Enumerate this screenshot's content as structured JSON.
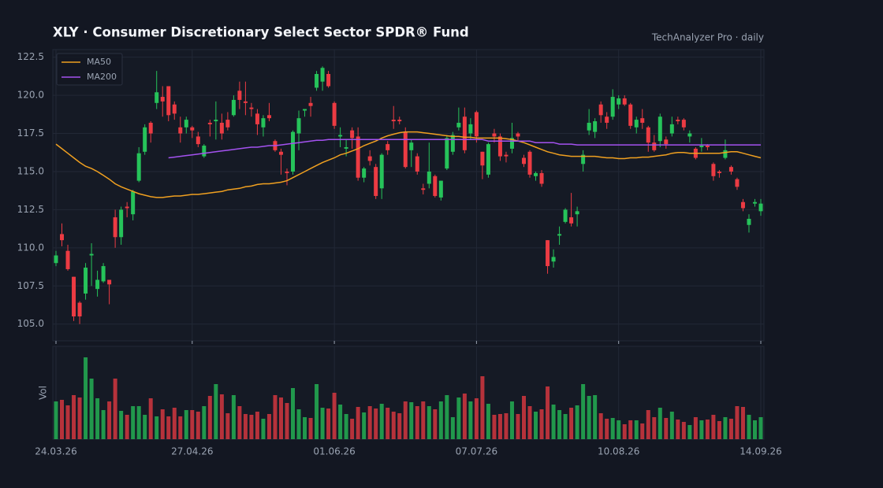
{
  "chart_data": {
    "type": "candlestick",
    "title": "XLY  ·  Consumer Discretionary Select Sector SPDR® Fund",
    "subtitle": "TechAnalyzer Pro · daily",
    "categories": [
      "24.03.26",
      null,
      null,
      null,
      null,
      null,
      null,
      null,
      null,
      null,
      null,
      null,
      null,
      null,
      null,
      null,
      null,
      null,
      null,
      null,
      null,
      null,
      null,
      "27.04.26",
      null,
      null,
      null,
      null,
      null,
      null,
      null,
      null,
      null,
      null,
      null,
      null,
      null,
      null,
      null,
      null,
      null,
      null,
      null,
      null,
      null,
      null,
      null,
      "01.06.26",
      null,
      null,
      null,
      null,
      null,
      null,
      null,
      null,
      null,
      null,
      null,
      null,
      null,
      null,
      null,
      null,
      null,
      null,
      null,
      null,
      null,
      null,
      null,
      "07.07.26",
      null,
      null,
      null,
      null,
      null,
      null,
      null,
      null,
      null,
      null,
      null,
      null,
      null,
      null,
      null,
      null,
      null,
      null,
      null,
      null,
      null,
      null,
      null,
      "10.08.26",
      null,
      null,
      null,
      null,
      null,
      null,
      null,
      null,
      null,
      null,
      null,
      null,
      null,
      null,
      null,
      null,
      null,
      null,
      null,
      null,
      null,
      null,
      null,
      "14.09.26"
    ],
    "open": [
      109.0,
      110.9,
      109.8,
      108.1,
      106.4,
      107.0,
      109.5,
      107.3,
      107.8,
      107.9,
      112.0,
      110.7,
      112.7,
      112.2,
      114.4,
      116.3,
      118.2,
      119.5,
      119.9,
      120.6,
      119.4,
      117.9,
      117.9,
      117.9,
      117.3,
      116.0,
      118.2,
      118.3,
      118.2,
      118.4,
      118.7,
      120.3,
      119.6,
      119.2,
      118.8,
      117.9,
      118.7,
      117.0,
      116.3,
      115.0,
      115.0,
      117.5,
      119.0,
      119.5,
      120.5,
      120.9,
      121.4,
      119.5,
      117.3,
      116.5,
      117.7,
      117.3,
      114.6,
      116.0,
      115.3,
      113.9,
      116.8,
      118.4,
      118.4,
      117.6,
      116.4,
      116.0,
      113.9,
      114.2,
      114.7,
      113.3,
      115.2,
      116.3,
      117.9,
      118.6,
      117.5,
      118.9,
      116.3,
      114.8,
      117.5,
      117.3,
      116.1,
      116.5,
      117.5,
      115.9,
      116.3,
      114.7,
      114.9,
      110.5,
      109.1,
      110.8,
      111.7,
      112.0,
      112.2,
      115.5,
      117.7,
      117.6,
      119.4,
      118.6,
      118.6,
      119.4,
      119.8,
      119.4,
      117.9,
      118.5,
      117.9,
      116.9,
      117.0,
      117.1,
      117.5,
      118.4,
      118.4,
      117.3,
      116.5,
      116.6,
      116.7,
      115.5,
      115.0,
      115.9,
      115.3,
      114.5,
      113.0,
      111.5,
      112.9,
      112.4
    ],
    "high": [
      109.8,
      111.6,
      110.2,
      108.1,
      106.5,
      109.0,
      110.3,
      108.5,
      109.0,
      107.9,
      112.5,
      112.7,
      113.0,
      113.8,
      116.6,
      118.1,
      118.3,
      121.6,
      120.6,
      120.6,
      119.6,
      118.6,
      118.6,
      118.0,
      117.6,
      116.8,
      118.4,
      119.6,
      118.8,
      118.9,
      120.0,
      120.9,
      120.9,
      119.5,
      119.1,
      118.7,
      119.5,
      117.1,
      116.5,
      115.2,
      117.7,
      119.0,
      119.1,
      119.9,
      121.6,
      121.9,
      121.6,
      119.6,
      117.9,
      117.1,
      117.9,
      117.9,
      115.3,
      116.4,
      115.5,
      116.2,
      117.0,
      119.3,
      118.6,
      117.9,
      117.1,
      116.2,
      114.2,
      116.9,
      114.8,
      114.4,
      117.4,
      117.6,
      119.2,
      119.2,
      118.5,
      119.0,
      116.3,
      116.9,
      117.8,
      117.5,
      116.3,
      118.2,
      117.6,
      116.1,
      116.4,
      115.0,
      115.1,
      110.5,
      109.9,
      111.4,
      112.6,
      113.6,
      112.7,
      116.4,
      119.1,
      118.5,
      119.6,
      118.9,
      120.4,
      120.0,
      120.0,
      119.5,
      118.6,
      119.1,
      118.0,
      117.4,
      118.8,
      117.3,
      118.6,
      118.6,
      118.5,
      117.7,
      116.6,
      117.2,
      116.8,
      115.6,
      115.1,
      117.1,
      115.4,
      114.6,
      113.2,
      112.2,
      113.2,
      113.2
    ],
    "low": [
      108.8,
      110.1,
      108.5,
      105.2,
      105.0,
      106.6,
      107.5,
      106.8,
      107.7,
      106.3,
      110.0,
      110.2,
      112.0,
      111.8,
      114.3,
      116.1,
      116.9,
      119.1,
      118.6,
      118.3,
      118.4,
      116.9,
      117.5,
      117.2,
      116.6,
      115.9,
      117.3,
      117.1,
      117.1,
      117.7,
      118.6,
      119.1,
      118.7,
      118.6,
      117.4,
      117.3,
      118.3,
      116.3,
      114.8,
      114.1,
      114.8,
      116.4,
      118.6,
      118.6,
      120.3,
      120.3,
      120.5,
      117.8,
      116.6,
      116.0,
      116.5,
      114.4,
      114.3,
      115.4,
      113.2,
      113.2,
      116.1,
      117.8,
      118.1,
      115.2,
      115.3,
      114.8,
      113.5,
      113.9,
      113.3,
      113.1,
      115.1,
      116.1,
      117.7,
      116.2,
      117.1,
      116.9,
      114.5,
      114.6,
      116.9,
      115.7,
      115.6,
      116.2,
      117.0,
      115.3,
      114.6,
      114.4,
      114.0,
      108.3,
      108.7,
      110.2,
      111.6,
      111.4,
      111.4,
      115.0,
      117.4,
      117.2,
      118.2,
      117.8,
      118.4,
      119.1,
      119.3,
      117.8,
      117.5,
      117.8,
      116.3,
      116.3,
      116.6,
      116.5,
      117.3,
      118.1,
      117.7,
      116.9,
      115.8,
      116.3,
      116.4,
      114.4,
      114.6,
      115.8,
      114.8,
      113.8,
      112.4,
      111.0,
      112.7,
      112.1
    ],
    "close": [
      109.5,
      110.5,
      108.6,
      105.5,
      105.5,
      108.7,
      109.6,
      107.9,
      108.8,
      107.6,
      110.7,
      112.5,
      112.6,
      113.7,
      116.2,
      117.9,
      117.5,
      120.2,
      119.6,
      118.7,
      118.8,
      117.5,
      118.4,
      117.7,
      116.8,
      116.7,
      118.1,
      118.4,
      117.5,
      117.9,
      119.7,
      119.7,
      119.5,
      119.1,
      118.1,
      118.5,
      118.5,
      116.4,
      116.1,
      114.9,
      117.6,
      118.5,
      119.1,
      119.3,
      121.4,
      121.8,
      120.6,
      118.0,
      117.4,
      116.6,
      117.2,
      114.6,
      115.2,
      115.7,
      113.4,
      116.1,
      116.4,
      118.3,
      118.3,
      115.3,
      116.9,
      115.0,
      113.8,
      115.0,
      113.4,
      114.4,
      117.2,
      117.4,
      118.2,
      116.4,
      118.1,
      117.3,
      115.4,
      116.8,
      117.3,
      116.0,
      116.0,
      117.2,
      117.3,
      115.5,
      114.8,
      114.9,
      114.2,
      108.8,
      109.4,
      110.9,
      112.5,
      111.6,
      112.4,
      116.1,
      118.2,
      118.3,
      118.7,
      118.2,
      119.9,
      119.8,
      119.4,
      118.0,
      118.4,
      118.2,
      116.9,
      116.4,
      118.6,
      116.8,
      118.1,
      118.3,
      117.9,
      117.5,
      115.9,
      116.7,
      116.6,
      114.7,
      114.9,
      116.4,
      115.0,
      114.0,
      112.6,
      111.9,
      113.0,
      112.9
    ],
    "up_color": "#26c35a",
    "down_color": "#ec3b43",
    "series": [
      {
        "name": "MA50",
        "color": "#f0a020",
        "values": [
          116.8,
          116.5,
          116.2,
          115.9,
          115.6,
          115.35,
          115.2,
          115.0,
          114.75,
          114.5,
          114.2,
          114.0,
          113.85,
          113.7,
          113.55,
          113.45,
          113.35,
          113.3,
          113.3,
          113.35,
          113.4,
          113.4,
          113.45,
          113.5,
          113.5,
          113.55,
          113.6,
          113.65,
          113.7,
          113.8,
          113.85,
          113.9,
          114.0,
          114.05,
          114.15,
          114.2,
          114.2,
          114.25,
          114.3,
          114.4,
          114.6,
          114.8,
          115.0,
          115.2,
          115.4,
          115.6,
          115.75,
          115.9,
          116.1,
          116.2,
          116.35,
          116.5,
          116.7,
          116.85,
          117.0,
          117.2,
          117.35,
          117.45,
          117.55,
          117.6,
          117.6,
          117.6,
          117.55,
          117.5,
          117.45,
          117.4,
          117.35,
          117.3,
          117.3,
          117.25,
          117.25,
          117.2,
          117.2,
          117.2,
          117.2,
          117.2,
          117.15,
          117.1,
          117.0,
          116.9,
          116.75,
          116.6,
          116.45,
          116.3,
          116.2,
          116.1,
          116.05,
          116.0,
          116.0,
          116.0,
          116.0,
          116.0,
          115.95,
          115.9,
          115.9,
          115.85,
          115.85,
          115.9,
          115.9,
          115.95,
          115.95,
          116.0,
          116.05,
          116.1,
          116.2,
          116.25,
          116.25,
          116.2,
          116.2,
          116.2,
          116.2,
          116.2,
          116.2,
          116.25,
          116.3,
          116.3,
          116.2,
          116.1,
          116.0,
          115.9
        ]
      },
      {
        "name": "MA200",
        "color": "#a452f0",
        "values": [
          null,
          null,
          null,
          null,
          null,
          null,
          null,
          null,
          null,
          null,
          null,
          null,
          null,
          null,
          null,
          null,
          null,
          null,
          null,
          115.9,
          115.95,
          116.0,
          116.05,
          116.1,
          116.15,
          116.2,
          116.25,
          116.3,
          116.35,
          116.4,
          116.45,
          116.5,
          116.55,
          116.6,
          116.6,
          116.65,
          116.7,
          116.7,
          116.75,
          116.8,
          116.85,
          116.9,
          116.95,
          117.0,
          117.05,
          117.05,
          117.1,
          117.1,
          117.1,
          117.1,
          117.1,
          117.1,
          117.1,
          117.1,
          117.1,
          117.1,
          117.1,
          117.1,
          117.1,
          117.1,
          117.1,
          117.1,
          117.1,
          117.1,
          117.1,
          117.1,
          117.1,
          117.1,
          117.1,
          117.1,
          117.1,
          117.1,
          117.1,
          117.0,
          117.0,
          117.0,
          117.0,
          117.0,
          117.0,
          117.0,
          117.0,
          116.9,
          116.9,
          116.9,
          116.9,
          116.8,
          116.8,
          116.8,
          116.75,
          116.75,
          116.75,
          116.75,
          116.75,
          116.75,
          116.75,
          116.75,
          116.75,
          116.75,
          116.75,
          116.75,
          116.75,
          116.75,
          116.75,
          116.75,
          116.75,
          116.75,
          116.75,
          116.75,
          116.75,
          116.75,
          116.75,
          116.75,
          116.75,
          116.75,
          116.75,
          116.75,
          116.75,
          116.75,
          116.75,
          116.75
        ]
      }
    ],
    "volume": {
      "label": "Vol",
      "ylim": [
        0,
        118
      ],
      "values": [
        48,
        50,
        43,
        56,
        53,
        104,
        77,
        52,
        37,
        48,
        77,
        36,
        31,
        42,
        42,
        31,
        52,
        29,
        38,
        29,
        40,
        29,
        37,
        37,
        35,
        42,
        55,
        70,
        57,
        33,
        56,
        42,
        32,
        31,
        35,
        26,
        32,
        56,
        53,
        46,
        65,
        38,
        28,
        27,
        70,
        40,
        39,
        59,
        44,
        32,
        26,
        41,
        34,
        42,
        39,
        45,
        40,
        35,
        33,
        48,
        47,
        42,
        48,
        42,
        38,
        48,
        56,
        28,
        53,
        58,
        48,
        52,
        80,
        45,
        31,
        32,
        33,
        48,
        32,
        55,
        42,
        35,
        38,
        67,
        44,
        37,
        32,
        40,
        43,
        70,
        55,
        56,
        33,
        26,
        27,
        24,
        19,
        24,
        24,
        20,
        37,
        28,
        40,
        27,
        35,
        25,
        22,
        18,
        28,
        24,
        25,
        31,
        23,
        28,
        26,
        42,
        41,
        31,
        24,
        28
      ]
    },
    "ylim": [
      103.9,
      123.0
    ],
    "yticks": [
      {
        "value": 105,
        "label": "105.0"
      },
      {
        "value": 107.5,
        "label": "107.5"
      },
      {
        "value": 110,
        "label": "110.0"
      },
      {
        "value": 112.5,
        "label": "112.5"
      },
      {
        "value": 115,
        "label": "115.0"
      },
      {
        "value": 117.5,
        "label": "117.5"
      },
      {
        "value": 120,
        "label": "120.0"
      },
      {
        "value": 122.5,
        "label": "122.5"
      }
    ],
    "grid": true,
    "legend": "upper left"
  }
}
